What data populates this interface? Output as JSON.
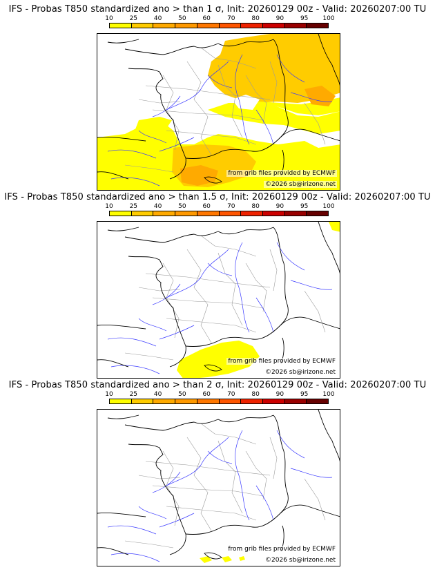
{
  "colors": {
    "scale": [
      "#ffff00",
      "#ffcc00",
      "#ffaa00",
      "#ff9900",
      "#ff7700",
      "#ff5500",
      "#ee2200",
      "#cc0000",
      "#990000",
      "#660000"
    ],
    "coast": "#000000",
    "rivers": "#3a3aff",
    "borders": "#9a9a9a"
  },
  "colorbar": {
    "ticks": [
      "10",
      "25",
      "40",
      "50",
      "60",
      "70",
      "80",
      "90",
      "95",
      "100"
    ]
  },
  "panels": [
    {
      "title": "IFS - Probas T850  standardized ano > than 1 σ, Init: 20260129 00z - Valid: 20260207:00 TU",
      "source_note": "from grib files provided by ECMWF",
      "copyright": "©2026 sb@irizone.net"
    },
    {
      "title": "IFS - Probas T850  standardized ano > than 1.5 σ, Init: 20260129 00z - Valid: 20260207:00 TU",
      "source_note": "from grib files provided by ECMWF",
      "copyright": "©2026 sb@irizone.net"
    },
    {
      "title": "IFS - Probas T850  standardized ano > than 2 σ, Init: 20260129 00z - Valid: 20260207:00 TU",
      "source_note": "from grib files provided by ECMWF",
      "copyright": "©2026 sb@irizone.net"
    }
  ]
}
